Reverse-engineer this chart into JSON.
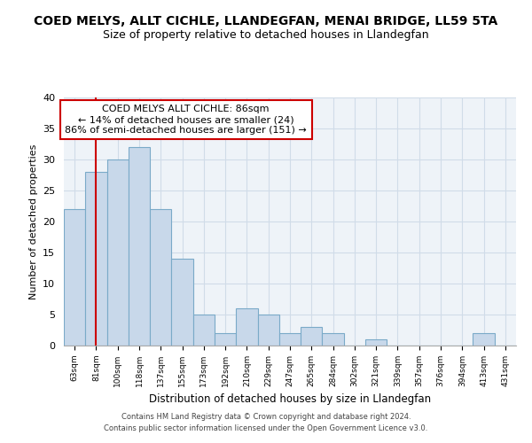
{
  "title": "COED MELYS, ALLT CICHLE, LLANDEGFAN, MENAI BRIDGE, LL59 5TA",
  "subtitle": "Size of property relative to detached houses in Llandegfan",
  "xlabel": "Distribution of detached houses by size in Llandegfan",
  "ylabel": "Number of detached properties",
  "bins": [
    "63sqm",
    "81sqm",
    "100sqm",
    "118sqm",
    "137sqm",
    "155sqm",
    "173sqm",
    "192sqm",
    "210sqm",
    "229sqm",
    "247sqm",
    "265sqm",
    "284sqm",
    "302sqm",
    "321sqm",
    "339sqm",
    "357sqm",
    "376sqm",
    "394sqm",
    "413sqm",
    "431sqm"
  ],
  "values": [
    22,
    28,
    30,
    32,
    22,
    14,
    5,
    2,
    6,
    5,
    2,
    3,
    2,
    0,
    1,
    0,
    0,
    0,
    0,
    2,
    0
  ],
  "bar_color": "#c8d8ea",
  "bar_edge_color": "#7aaac8",
  "ylim": [
    0,
    40
  ],
  "yticks": [
    0,
    5,
    10,
    15,
    20,
    25,
    30,
    35,
    40
  ],
  "annotation_title": "COED MELYS ALLT CICHLE: 86sqm",
  "annotation_line1": "← 14% of detached houses are smaller (24)",
  "annotation_line2": "86% of semi-detached houses are larger (151) →",
  "marker_bin_index": 1,
  "annotation_box_color": "#ffffff",
  "annotation_box_edge": "#cc0000",
  "marker_line_color": "#cc0000",
  "bg_color": "#eef3f8",
  "grid_color": "#d0dce8",
  "footer1": "Contains HM Land Registry data © Crown copyright and database right 2024.",
  "footer2": "Contains public sector information licensed under the Open Government Licence v3.0."
}
